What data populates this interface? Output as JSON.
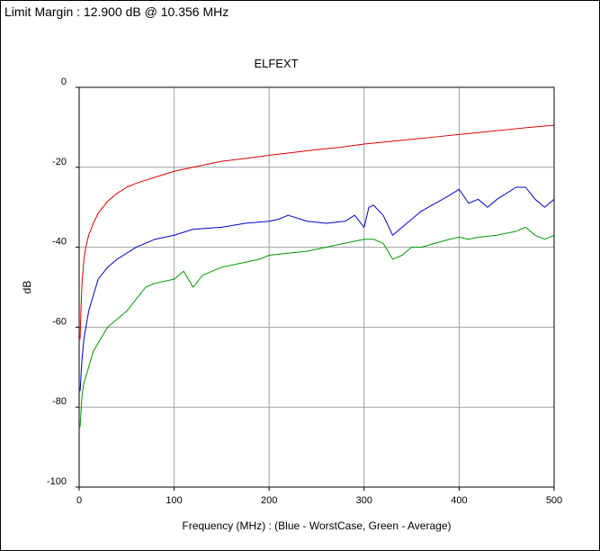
{
  "header": {
    "limit_margin": "Limit Margin : 12.900 dB @ 10.356 MHz"
  },
  "chart_data": {
    "type": "line",
    "title": "ELFEXT",
    "xlabel": "Frequency (MHz) : (Blue - WorstCase, Green - Average)",
    "ylabel": "dB",
    "xlim": [
      0,
      500
    ],
    "ylim": [
      -100,
      0
    ],
    "xticks": [
      0,
      100,
      200,
      300,
      400,
      500
    ],
    "yticks": [
      0,
      -20,
      -40,
      -60,
      -80,
      -100
    ],
    "grid": true,
    "series": [
      {
        "color": "#dd0000",
        "x": [
          1,
          2,
          3,
          5,
          7,
          10,
          15,
          20,
          30,
          40,
          50,
          60,
          80,
          100,
          120,
          150,
          175,
          200,
          225,
          250,
          275,
          300,
          325,
          350,
          375,
          400,
          425,
          450,
          475,
          500
        ],
        "y": [
          -63,
          -55,
          -49,
          -43,
          -40,
          -37,
          -34,
          -31.5,
          -28.5,
          -26.5,
          -25,
          -24,
          -22.5,
          -21,
          -20,
          -18.5,
          -17.8,
          -17,
          -16.3,
          -15.6,
          -15,
          -14.2,
          -13.6,
          -13,
          -12.4,
          -11.8,
          -11.2,
          -10.6,
          -10,
          -9.5
        ]
      },
      {
        "color": "#0000cc",
        "x": [
          1,
          3,
          5,
          10,
          15,
          20,
          30,
          40,
          50,
          60,
          80,
          100,
          120,
          150,
          175,
          200,
          210,
          220,
          240,
          260,
          280,
          290,
          300,
          305,
          310,
          320,
          330,
          340,
          350,
          360,
          375,
          390,
          400,
          410,
          420,
          430,
          440,
          460,
          470,
          480,
          490,
          500
        ],
        "y": [
          -76,
          -68,
          -63,
          -56,
          -52,
          -48,
          -45,
          -43,
          -41.5,
          -40,
          -38,
          -37,
          -35.5,
          -35,
          -34,
          -33.5,
          -33,
          -32,
          -33.5,
          -34,
          -33.5,
          -32,
          -35,
          -30,
          -29.5,
          -32,
          -37,
          -35,
          -33,
          -31,
          -29,
          -27,
          -25.5,
          -29,
          -28,
          -30,
          -28,
          -25,
          -25,
          -28,
          -30,
          -28
        ]
      },
      {
        "color": "#009900",
        "x": [
          1,
          3,
          5,
          10,
          15,
          20,
          30,
          40,
          50,
          60,
          70,
          80,
          100,
          110,
          120,
          130,
          150,
          170,
          190,
          200,
          220,
          240,
          260,
          280,
          300,
          310,
          320,
          330,
          340,
          350,
          360,
          375,
          390,
          400,
          410,
          420,
          440,
          460,
          470,
          480,
          490,
          500
        ],
        "y": [
          -85,
          -77,
          -74,
          -70,
          -66,
          -64,
          -60,
          -58,
          -56,
          -53,
          -50,
          -49,
          -48,
          -46,
          -50,
          -47,
          -45,
          -44,
          -43,
          -42,
          -41.5,
          -41,
          -40,
          -39,
          -38,
          -38,
          -39,
          -43,
          -42,
          -40,
          -40,
          -39,
          -38,
          -37.5,
          -38,
          -37.5,
          -37,
          -36,
          -35,
          -37,
          -38,
          -37
        ]
      }
    ]
  }
}
